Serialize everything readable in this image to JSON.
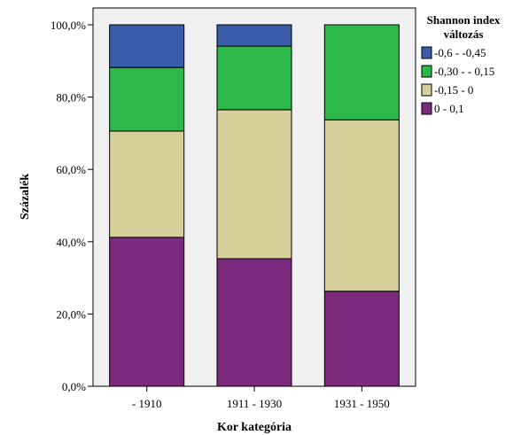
{
  "chart_data": {
    "type": "bar",
    "stacked": true,
    "xlabel": "Kor kategória",
    "ylabel": "Százalék",
    "ylim": [
      0,
      100
    ],
    "y_ticks": [
      "0,0%",
      "20,0%",
      "40,0%",
      "60,0%",
      "80,0%",
      "100,0%"
    ],
    "categories": [
      "- 1910",
      "1911 - 1930",
      "1931 - 1950"
    ],
    "legend": {
      "title_line1": "Shannon index",
      "title_line2": "változás",
      "placement": "right"
    },
    "grid": false,
    "series": [
      {
        "name": "0 - 0,1",
        "color": "#7b2a7d",
        "values": [
          41.2,
          35.3,
          26.3
        ]
      },
      {
        "name": "-0,15 - 0",
        "color": "#d6d19a",
        "values": [
          29.4,
          41.2,
          47.4
        ]
      },
      {
        "name": "-0,30 - - 0,15",
        "color": "#2db84a",
        "values": [
          17.6,
          17.6,
          26.3
        ]
      },
      {
        "name": "-0,6 - -0,45",
        "color": "#3a5ba7",
        "values": [
          11.8,
          5.9,
          0
        ]
      }
    ],
    "legend_order": [
      "-0,6 - -0,45",
      "-0,30 - - 0,15",
      "-0,15 - 0",
      "0 - 0,1"
    ]
  }
}
